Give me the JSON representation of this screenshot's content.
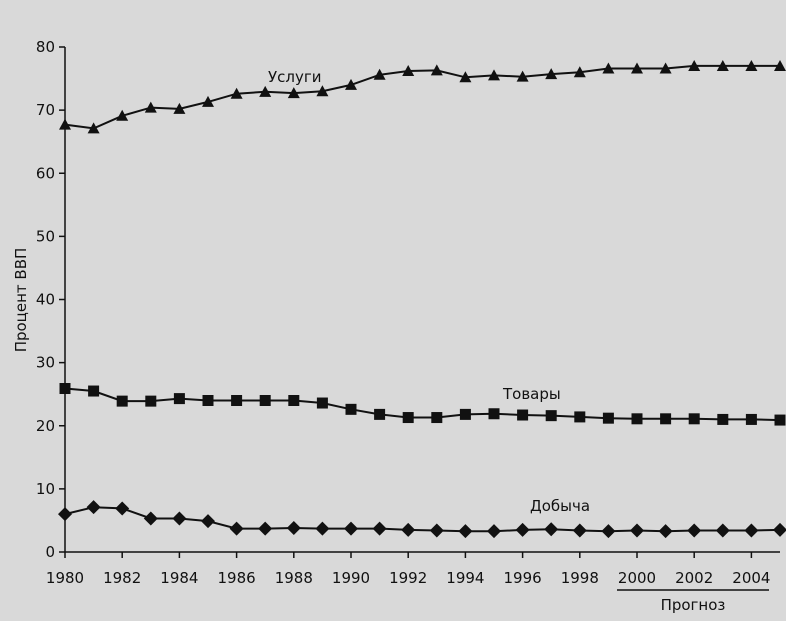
{
  "chart_data": {
    "type": "line",
    "title": "",
    "xlabel": "",
    "ylabel": "Процент ВВП",
    "ylim": [
      0,
      80
    ],
    "yticks": [
      0,
      10,
      20,
      30,
      40,
      50,
      60,
      70,
      80
    ],
    "xlim": [
      1980,
      2005
    ],
    "xticks": [
      1980,
      1982,
      1984,
      1986,
      1988,
      1990,
      1992,
      1994,
      1996,
      1998,
      2000,
      2002,
      2004
    ],
    "x": [
      1980,
      1981,
      1982,
      1983,
      1984,
      1985,
      1986,
      1987,
      1988,
      1989,
      1990,
      1991,
      1992,
      1993,
      1994,
      1995,
      1996,
      1997,
      1998,
      1999,
      2000,
      2001,
      2002,
      2003,
      2004,
      2005
    ],
    "forecast": {
      "label": "Прогноз",
      "from": 2000,
      "to": 2005
    },
    "grid": false,
    "series": [
      {
        "name": "Услуги",
        "marker": "triangle",
        "values": [
          67.7,
          67.1,
          69.1,
          70.4,
          70.2,
          71.3,
          72.6,
          72.9,
          72.7,
          73.0,
          74.0,
          75.6,
          76.2,
          76.3,
          75.2,
          75.5,
          75.3,
          75.7,
          76.0,
          76.6,
          76.6,
          76.6,
          77.0,
          77.0,
          77.0,
          77.0
        ]
      },
      {
        "name": "Товары",
        "marker": "square",
        "values": [
          25.9,
          25.5,
          23.9,
          23.9,
          24.3,
          24.0,
          24.0,
          24.0,
          24.0,
          23.6,
          22.6,
          21.8,
          21.3,
          21.3,
          21.8,
          21.9,
          21.7,
          21.6,
          21.4,
          21.2,
          21.1,
          21.1,
          21.1,
          21.0,
          21.0,
          20.9
        ]
      },
      {
        "name": "Добыча",
        "marker": "diamond",
        "values": [
          6.0,
          7.1,
          6.9,
          5.3,
          5.3,
          4.9,
          3.7,
          3.7,
          3.8,
          3.7,
          3.7,
          3.7,
          3.5,
          3.4,
          3.3,
          3.3,
          3.5,
          3.6,
          3.4,
          3.3,
          3.4,
          3.3,
          3.4,
          3.4,
          3.4,
          3.5
        ]
      }
    ]
  }
}
